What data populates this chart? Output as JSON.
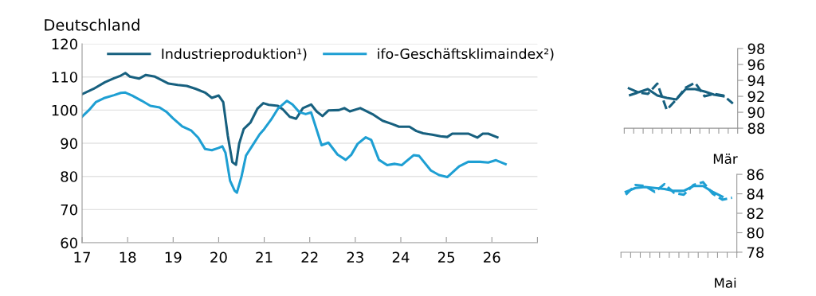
{
  "chart_data": [
    {
      "type": "line",
      "title": "Deutschland",
      "legend": "top left",
      "grid": "y",
      "line_style": "solid",
      "marker": "none",
      "xlim": [
        2017,
        2027
      ],
      "xticks": [
        {
          "value": 2017,
          "label": "17"
        },
        {
          "value": 2018,
          "label": "18"
        },
        {
          "value": 2019,
          "label": "19"
        },
        {
          "value": 2020,
          "label": "20"
        },
        {
          "value": 2021,
          "label": "21"
        },
        {
          "value": 2022,
          "label": "22"
        },
        {
          "value": 2023,
          "label": "23"
        },
        {
          "value": 2024,
          "label": "24"
        },
        {
          "value": 2025,
          "label": "25"
        },
        {
          "value": 2026,
          "label": "26"
        },
        {
          "value": 2027,
          "label": null
        }
      ],
      "ylim": [
        60,
        120
      ],
      "yticks": [
        60,
        70,
        80,
        90,
        100,
        110,
        120
      ],
      "series": [
        {
          "name": "Industrieproduktion¹)",
          "color": "#17607f",
          "x": [
            2017.0,
            2017.25,
            2017.5,
            2017.7,
            2017.85,
            2017.95,
            2018.05,
            2018.25,
            2018.4,
            2018.6,
            2018.9,
            2019.1,
            2019.3,
            2019.5,
            2019.7,
            2019.85,
            2020.0,
            2020.1,
            2020.2,
            2020.3,
            2020.38,
            2020.45,
            2020.55,
            2020.7,
            2020.85,
            2020.98,
            2021.1,
            2021.3,
            2021.41,
            2021.56,
            2021.7,
            2021.85,
            2022.03,
            2022.15,
            2022.28,
            2022.41,
            2022.64,
            2022.76,
            2022.88,
            2023.11,
            2023.4,
            2023.6,
            2023.81,
            2023.96,
            2024.19,
            2024.34,
            2024.49,
            2024.69,
            2024.87,
            2025.02,
            2025.13,
            2025.33,
            2025.48,
            2025.68,
            2025.8,
            2025.92,
            2026.12
          ],
          "values": [
            104.8,
            106.4,
            108.4,
            109.6,
            110.4,
            111.2,
            110.1,
            109.5,
            110.6,
            110.1,
            108,
            107.6,
            107.3,
            106.4,
            105.3,
            103.7,
            104.4,
            102.4,
            92.3,
            84.3,
            83.5,
            89.9,
            94.3,
            96.3,
            100.4,
            102.1,
            101.6,
            101.3,
            100.2,
            98,
            97.4,
            100.6,
            101.7,
            99.6,
            98.2,
            99.9,
            100,
            100.6,
            99.6,
            100.6,
            98.6,
            96.8,
            95.8,
            95,
            95,
            93.7,
            93,
            92.6,
            92.1,
            91.9,
            92.9,
            92.9,
            92.9,
            91.7,
            92.9,
            92.9,
            91.8
          ]
        },
        {
          "name": "ifo-Geschäftsklimaindex²)",
          "color": "#1e9fd3",
          "x": [
            2017.0,
            2017.15,
            2017.3,
            2017.5,
            2017.7,
            2017.85,
            2017.95,
            2018.1,
            2018.3,
            2018.5,
            2018.7,
            2018.85,
            2019.0,
            2019.2,
            2019.4,
            2019.55,
            2019.7,
            2019.85,
            2020.0,
            2020.08,
            2020.15,
            2020.25,
            2020.35,
            2020.4,
            2020.5,
            2020.6,
            2020.75,
            2020.9,
            2021.0,
            2021.15,
            2021.3,
            2021.5,
            2021.62,
            2021.77,
            2021.91,
            2022.03,
            2022.26,
            2022.41,
            2022.61,
            2022.79,
            2022.91,
            2023.05,
            2023.23,
            2023.35,
            2023.52,
            2023.7,
            2023.87,
            2024.02,
            2024.28,
            2024.4,
            2024.66,
            2024.84,
            2025.02,
            2025.28,
            2025.48,
            2025.74,
            2025.92,
            2026.09,
            2026.3
          ],
          "values": [
            98,
            100,
            102.4,
            103.7,
            104.5,
            105.2,
            105.3,
            104.4,
            102.9,
            101.3,
            100.8,
            99.5,
            97.5,
            95.1,
            93.8,
            91.7,
            88.3,
            87.9,
            88.6,
            89.1,
            87.1,
            78.7,
            75.7,
            75.1,
            79.9,
            86.3,
            89.5,
            92.7,
            94.3,
            97.1,
            100.4,
            102.8,
            101.7,
            99.4,
            98.8,
            99.3,
            89.4,
            90.2,
            86.6,
            85,
            86.5,
            89.8,
            91.8,
            91,
            85,
            83.4,
            83.8,
            83.4,
            86.4,
            86.2,
            81.8,
            80.4,
            79.8,
            83,
            84.4,
            84.4,
            84.2,
            84.9,
            83.7
          ]
        }
      ]
    },
    {
      "type": "line",
      "xlabel": "Mär",
      "tick_labels": "y",
      "marker": "none",
      "ylim": [
        88,
        98
      ],
      "yticks": [
        88,
        90,
        92,
        94,
        96,
        98
      ],
      "categories": [
        null,
        null,
        null,
        null,
        null,
        null,
        null,
        null,
        null,
        null,
        null,
        null
      ],
      "series": [
        {
          "color": "#17607f",
          "line_style": "solid",
          "values": [
            93.0,
            92.5,
            92.9,
            92.1,
            91.8,
            91.6,
            92.9,
            92.9,
            92.6,
            92.2,
            92.0,
            null
          ]
        },
        {
          "color": "#17607f",
          "line_style": "dashed",
          "values": [
            92.1,
            92.5,
            92.3,
            93.6,
            90.3,
            91.6,
            93.1,
            93.7,
            92.0,
            92.3,
            92.1,
            91.1
          ]
        }
      ]
    },
    {
      "type": "line",
      "xlabel": "Mai",
      "tick_labels": "y",
      "marker": "none",
      "ylim": [
        78,
        86
      ],
      "yticks": [
        78,
        80,
        82,
        84,
        86
      ],
      "categories": [
        null,
        null,
        null,
        null,
        null,
        null,
        null,
        null,
        null,
        null,
        null,
        null
      ],
      "series": [
        {
          "color": "#1e9fd3",
          "line_style": "solid",
          "values": [
            84.2,
            84.6,
            84.7,
            84.6,
            84.5,
            84.3,
            84.3,
            84.8,
            84.8,
            84.2,
            83.7,
            null
          ]
        },
        {
          "color": "#1e9fd3",
          "line_style": "dashed",
          "values": [
            83.9,
            84.9,
            84.8,
            84.2,
            85.0,
            84.1,
            83.9,
            84.9,
            85.2,
            84.0,
            83.4,
            83.6
          ]
        }
      ]
    }
  ]
}
